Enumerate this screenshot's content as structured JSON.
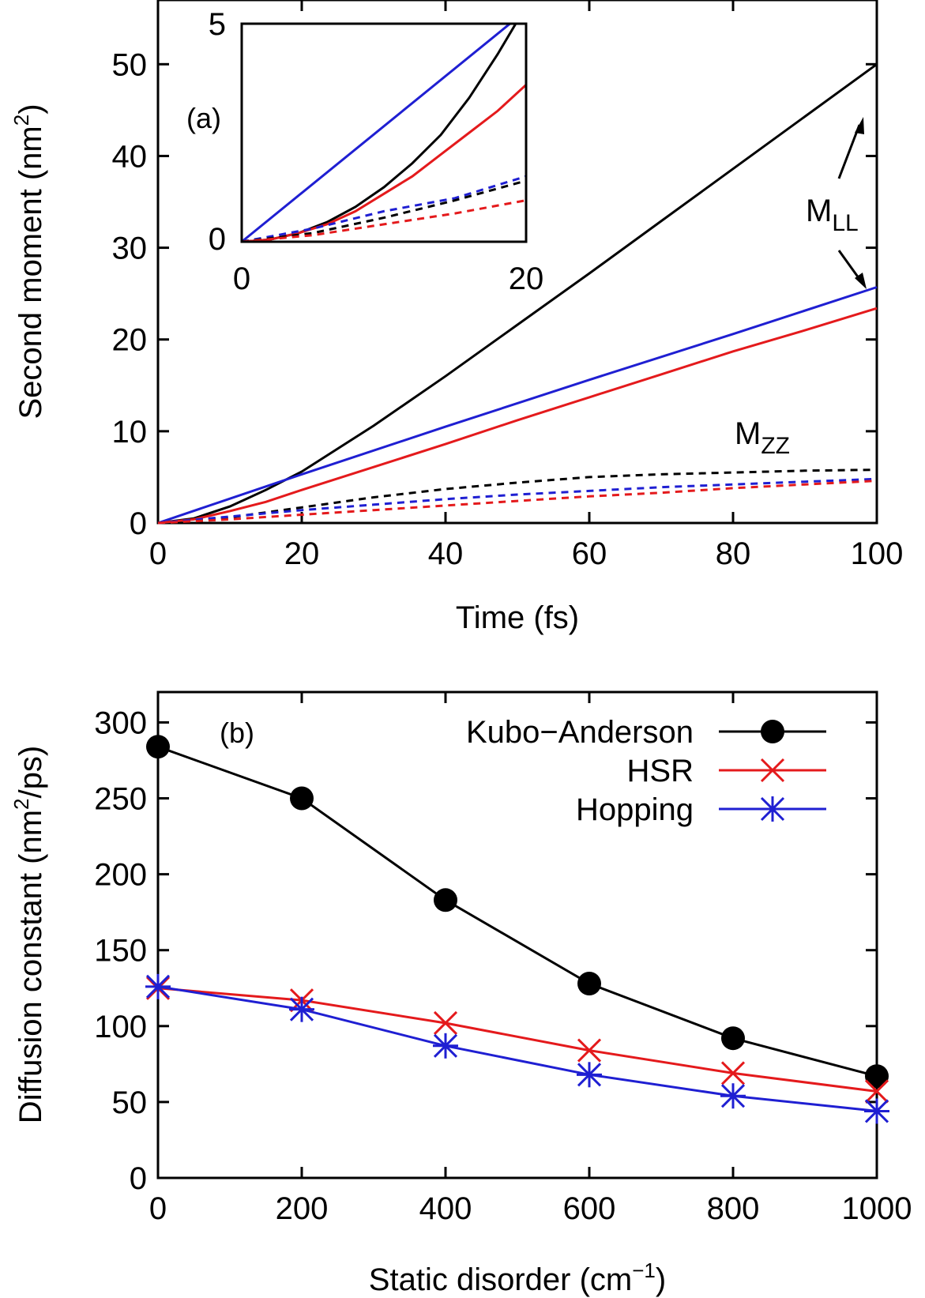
{
  "colors": {
    "black": "#000000",
    "red": "#e41a1c",
    "blue": "#1f1fd2"
  },
  "chart_data": [
    {
      "type": "line",
      "panel_label": "(a)",
      "xlabel": "Time (fs)",
      "ylabel_main": "Second moment (nm",
      "ylabel_sup": "2",
      "ylabel_end": ")",
      "xlim": [
        0,
        100
      ],
      "ylim": [
        0,
        57
      ],
      "xticks": [
        0,
        20,
        40,
        60,
        80,
        100
      ],
      "yticks": [
        0,
        10,
        20,
        30,
        40,
        50
      ],
      "x_tick_labels": [
        "0",
        "20",
        "40",
        "60",
        "80",
        "100"
      ],
      "y_tick_labels": [
        "0",
        "10",
        "20",
        "30",
        "40",
        "50"
      ],
      "annotations": {
        "mll_main": "M",
        "mll_sub": "LL",
        "mzz_main": "M",
        "mzz_sub": "ZZ"
      },
      "series": [
        {
          "color": "black",
          "style": "solid",
          "x": [
            0,
            5,
            10,
            15,
            20,
            30,
            40,
            50,
            60,
            70,
            80,
            90,
            100
          ],
          "y": [
            0,
            0.5,
            1.8,
            3.6,
            5.6,
            10.6,
            16.0,
            21.6,
            27.2,
            32.9,
            38.6,
            44.3,
            50.0
          ]
        },
        {
          "color": "blue",
          "style": "solid",
          "x": [
            0,
            20,
            40,
            60,
            80,
            100
          ],
          "y": [
            0,
            5.3,
            10.5,
            15.6,
            20.6,
            25.7
          ]
        },
        {
          "color": "red",
          "style": "solid",
          "x": [
            0,
            5,
            10,
            15,
            20,
            30,
            40,
            50,
            60,
            70,
            80,
            90,
            100
          ],
          "y": [
            0,
            0.4,
            1.3,
            2.3,
            3.6,
            6.1,
            8.6,
            11.2,
            13.7,
            16.2,
            18.7,
            21.0,
            23.4
          ]
        },
        {
          "color": "black",
          "style": "dashed",
          "x": [
            0,
            10,
            20,
            30,
            40,
            50,
            60,
            70,
            80,
            90,
            100
          ],
          "y": [
            0,
            0.6,
            1.7,
            2.8,
            3.7,
            4.4,
            5.0,
            5.3,
            5.5,
            5.7,
            5.8
          ]
        },
        {
          "color": "blue",
          "style": "dashed",
          "x": [
            0,
            10,
            20,
            30,
            40,
            50,
            60,
            70,
            80,
            90,
            100
          ],
          "y": [
            0,
            0.7,
            1.4,
            2.0,
            2.6,
            3.1,
            3.5,
            3.9,
            4.2,
            4.5,
            4.8
          ]
        },
        {
          "color": "red",
          "style": "dashed",
          "x": [
            0,
            10,
            20,
            30,
            40,
            50,
            60,
            70,
            80,
            90,
            100
          ],
          "y": [
            0,
            0.4,
            0.9,
            1.4,
            1.9,
            2.4,
            2.9,
            3.3,
            3.8,
            4.2,
            4.6
          ]
        }
      ],
      "inset": {
        "xlim": [
          0,
          20
        ],
        "ylim": [
          0,
          5
        ],
        "x_tick_labels": [
          "0",
          "20"
        ],
        "y_tick_labels": [
          "0",
          "5"
        ],
        "series": [
          {
            "color": "blue",
            "style": "solid",
            "x": [
              0,
              20
            ],
            "y": [
              0,
              5.3
            ]
          },
          {
            "color": "black",
            "style": "solid",
            "x": [
              0,
              2,
              4,
              6,
              8,
              10,
              12,
              14,
              16,
              18,
              20
            ],
            "y": [
              0,
              0.05,
              0.2,
              0.45,
              0.8,
              1.25,
              1.8,
              2.45,
              3.3,
              4.3,
              5.4
            ]
          },
          {
            "color": "red",
            "style": "solid",
            "x": [
              0,
              2,
              4,
              6,
              8,
              10,
              12,
              14,
              16,
              18,
              20
            ],
            "y": [
              0,
              0.05,
              0.2,
              0.4,
              0.7,
              1.1,
              1.5,
              2.0,
              2.5,
              3.0,
              3.6
            ]
          },
          {
            "color": "blue",
            "style": "dashed",
            "x": [
              0,
              5,
              10,
              15,
              20
            ],
            "y": [
              0,
              0.3,
              0.7,
              1.0,
              1.5
            ]
          },
          {
            "color": "black",
            "style": "dashed",
            "x": [
              0,
              5,
              10,
              15,
              20
            ],
            "y": [
              0,
              0.2,
              0.55,
              0.95,
              1.4
            ]
          },
          {
            "color": "red",
            "style": "dashed",
            "x": [
              0,
              5,
              10,
              15,
              20
            ],
            "y": [
              0,
              0.15,
              0.4,
              0.65,
              0.95
            ]
          }
        ]
      }
    },
    {
      "type": "line",
      "panel_label": "(b)",
      "xlabel_main": "Static disorder (cm",
      "xlabel_sup": "−1",
      "xlabel_end": ")",
      "ylabel_main": "Diffusion constant (nm",
      "ylabel_sup": "2",
      "ylabel_end": "/ps)",
      "xlim": [
        0,
        1000
      ],
      "ylim": [
        0,
        320
      ],
      "xticks": [
        0,
        200,
        400,
        600,
        800,
        1000
      ],
      "yticks": [
        0,
        50,
        100,
        150,
        200,
        250,
        300
      ],
      "x_tick_labels": [
        "0",
        "200",
        "400",
        "600",
        "800",
        "1000"
      ],
      "y_tick_labels": [
        "0",
        "50",
        "100",
        "150",
        "200",
        "250",
        "300"
      ],
      "legend_position": "top-right",
      "series": [
        {
          "name": "Kubo−Anderson",
          "color": "black",
          "marker": "circle",
          "x": [
            0,
            200,
            400,
            600,
            800,
            1000
          ],
          "y": [
            284,
            250,
            183,
            128,
            92,
            67
          ]
        },
        {
          "name": "HSR",
          "color": "red",
          "marker": "x",
          "x": [
            0,
            200,
            400,
            600,
            800,
            1000
          ],
          "y": [
            125,
            117,
            102,
            84,
            69,
            57
          ]
        },
        {
          "name": "Hopping",
          "color": "blue",
          "marker": "star",
          "x": [
            0,
            200,
            400,
            600,
            800,
            1000
          ],
          "y": [
            126,
            111,
            87,
            68,
            54,
            44
          ]
        }
      ]
    }
  ]
}
